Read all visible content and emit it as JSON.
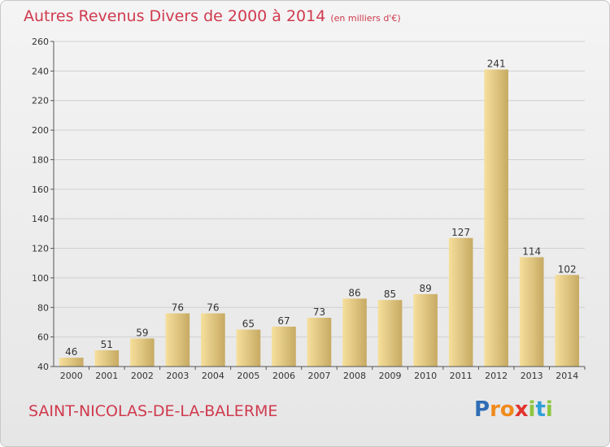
{
  "title": "Autres Revenus Divers de 2000 à 2014",
  "subtitle": "(en milliers d'€)",
  "commune": "SAINT-NICOLAS-DE-LA-BALERME",
  "logo": {
    "letters": [
      "P",
      "r",
      "o",
      "x",
      "i",
      "t",
      "i"
    ],
    "colors": [
      "#2f6db5",
      "#f08a1c",
      "#f08a1c",
      "#e2322e",
      "#8dc63f",
      "#2f9fd8",
      "#8dc63f"
    ]
  },
  "colors": {
    "title": "#d03a4e",
    "bar_light": "#f6df9c",
    "bar_dark": "#c7aa63",
    "grid": "#d0d0d0",
    "axis": "#555555"
  },
  "chart_data": {
    "type": "bar",
    "categories": [
      "2000",
      "2001",
      "2002",
      "2003",
      "2004",
      "2005",
      "2006",
      "2007",
      "2008",
      "2009",
      "2010",
      "2011",
      "2012",
      "2013",
      "2014"
    ],
    "values": [
      46,
      51,
      59,
      76,
      76,
      65,
      67,
      73,
      86,
      85,
      89,
      127,
      241,
      114,
      102
    ],
    "ylim": [
      40,
      260
    ],
    "yticks": [
      40,
      60,
      80,
      100,
      120,
      140,
      160,
      180,
      200,
      220,
      240,
      260
    ],
    "grid": true,
    "data_labels": true
  }
}
